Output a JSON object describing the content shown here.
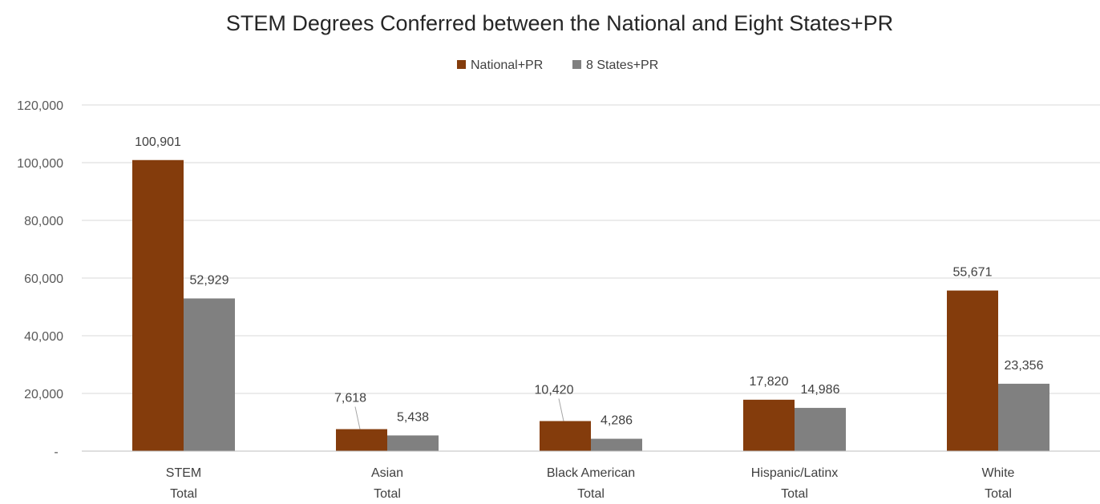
{
  "chart_data": {
    "type": "bar",
    "title": "STEM Degrees Conferred between the National and Eight States+PR",
    "xlabel": "",
    "ylabel": "",
    "categories": [
      [
        "STEM",
        "Total"
      ],
      [
        "Asian",
        "Total"
      ],
      [
        "Black American",
        "Total"
      ],
      [
        "Hispanic/Latinx",
        "Total"
      ],
      [
        "White",
        "Total"
      ]
    ],
    "series": [
      {
        "name": "National+PR",
        "color": "#843C0C",
        "values": [
          100901,
          7618,
          10420,
          17820,
          55671
        ],
        "labels": [
          "100,901",
          "7,618",
          "10,420",
          "17,820",
          "55,671"
        ]
      },
      {
        "name": "8 States+PR",
        "color": "#808080",
        "values": [
          52929,
          5438,
          4286,
          14986,
          23356
        ],
        "labels": [
          "52,929",
          "5,438",
          "4,286",
          "14,986",
          "23,356"
        ]
      }
    ],
    "ylim": [
      0,
      120000
    ],
    "yticks": [
      0,
      20000,
      40000,
      60000,
      80000,
      100000,
      120000
    ],
    "ytick_labels": [
      "-",
      "20,000",
      "40,000",
      "60,000",
      "80,000",
      "100,000",
      "120,000"
    ],
    "grid": true,
    "legend": "top-center"
  }
}
